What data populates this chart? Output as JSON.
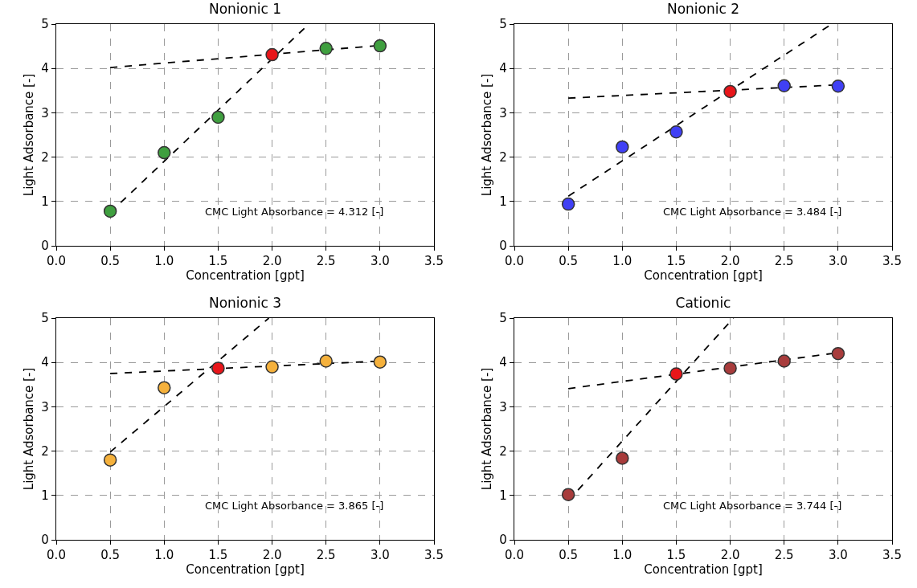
{
  "chart_data": [
    {
      "type": "scatter",
      "title": "Nonionic 1",
      "xlabel": "Concentration [gpt]",
      "ylabel": "Light Adsorbance [-]",
      "annotations": [
        "CMC Light Absorbance = 4.312 [-]"
      ],
      "xlim": [
        0,
        3.5
      ],
      "xticks": [
        {
          "value": 0,
          "label": "0.0"
        },
        {
          "value": 0.5,
          "label": "0.5"
        },
        {
          "value": 1,
          "label": "1.0"
        },
        {
          "value": 1.5,
          "label": "1.5"
        },
        {
          "value": 2,
          "label": "2.0"
        },
        {
          "value": 2.5,
          "label": "2.5"
        },
        {
          "value": 3,
          "label": "3.0"
        },
        {
          "value": 3.5,
          "label": "3.5"
        }
      ],
      "ylim": [
        0,
        5
      ],
      "yticks": [
        0,
        1,
        2,
        3,
        4,
        5
      ],
      "grid": true,
      "marker": "circle",
      "series": [
        {
          "type": "scatter",
          "color": "#3f9f3f",
          "x": [
            0.5,
            1,
            1.5,
            2,
            2.5,
            3
          ],
          "values": [
            0.78,
            2.1,
            2.9,
            null,
            4.45,
            4.51
          ]
        },
        {
          "type": "scatter",
          "color": "#e8161a",
          "x": [
            2
          ],
          "values": [
            4.31
          ]
        },
        {
          "type": "line",
          "marker": "none",
          "color": "#000000",
          "line_style": "dashed",
          "x": [
            0.5,
            2.34
          ],
          "values": [
            0.75,
            5
          ]
        },
        {
          "type": "line",
          "marker": "none",
          "color": "#000000",
          "line_style": "dashed",
          "x": [
            0.5,
            3
          ],
          "values": [
            4.02,
            4.52
          ]
        }
      ]
    },
    {
      "type": "scatter",
      "title": "Nonionic 2",
      "xlabel": "Concentration [gpt]",
      "ylabel": "Light Adsorbance [-]",
      "annotations": [
        "CMC Light Absorbance = 3.484 [-]"
      ],
      "xlim": [
        0,
        3.5
      ],
      "xticks": [
        {
          "value": 0,
          "label": "0.0"
        },
        {
          "value": 0.5,
          "label": "0.5"
        },
        {
          "value": 1,
          "label": "1.0"
        },
        {
          "value": 1.5,
          "label": "1.5"
        },
        {
          "value": 2,
          "label": "2.0"
        },
        {
          "value": 2.5,
          "label": "2.5"
        },
        {
          "value": 3,
          "label": "3.0"
        },
        {
          "value": 3.5,
          "label": "3.5"
        }
      ],
      "ylim": [
        0,
        5
      ],
      "yticks": [
        0,
        1,
        2,
        3,
        4,
        5
      ],
      "grid": true,
      "marker": "circle",
      "series": [
        {
          "type": "scatter",
          "color": "#4040f5",
          "x": [
            0.5,
            1,
            1.5,
            2,
            2.5,
            3
          ],
          "values": [
            0.94,
            2.23,
            2.57,
            null,
            3.61,
            3.6
          ]
        },
        {
          "type": "scatter",
          "color": "#e8161a",
          "x": [
            2
          ],
          "values": [
            3.48
          ]
        },
        {
          "type": "line",
          "marker": "none",
          "color": "#000000",
          "line_style": "dashed",
          "x": [
            0.5,
            2.94
          ],
          "values": [
            1.12,
            5
          ]
        },
        {
          "type": "line",
          "marker": "none",
          "color": "#000000",
          "line_style": "dashed",
          "x": [
            0.5,
            3
          ],
          "values": [
            3.33,
            3.63
          ]
        }
      ]
    },
    {
      "type": "scatter",
      "title": "Nonionic 3",
      "xlabel": "Concentration [gpt]",
      "ylabel": "Light Adsorbance [-]",
      "annotations": [
        "CMC Light Absorbance = 3.865 [-]"
      ],
      "xlim": [
        0,
        3.5
      ],
      "xticks": [
        {
          "value": 0,
          "label": "0.0"
        },
        {
          "value": 0.5,
          "label": "0.5"
        },
        {
          "value": 1,
          "label": "1.0"
        },
        {
          "value": 1.5,
          "label": "1.5"
        },
        {
          "value": 2,
          "label": "2.0"
        },
        {
          "value": 2.5,
          "label": "2.5"
        },
        {
          "value": 3,
          "label": "3.0"
        },
        {
          "value": 3.5,
          "label": "3.5"
        }
      ],
      "ylim": [
        0,
        5
      ],
      "yticks": [
        0,
        1,
        2,
        3,
        4,
        5
      ],
      "grid": true,
      "marker": "circle",
      "series": [
        {
          "type": "scatter",
          "color": "#f5b13c",
          "x": [
            0.5,
            1,
            1.5,
            2,
            2.5,
            3
          ],
          "values": [
            1.8,
            3.43,
            null,
            3.9,
            4.03,
            4.01
          ]
        },
        {
          "type": "scatter",
          "color": "#e8161a",
          "x": [
            1.5
          ],
          "values": [
            3.87
          ]
        },
        {
          "type": "line",
          "marker": "none",
          "color": "#000000",
          "line_style": "dashed",
          "x": [
            0.5,
            1.97
          ],
          "values": [
            1.98,
            5
          ]
        },
        {
          "type": "line",
          "marker": "none",
          "color": "#000000",
          "line_style": "dashed",
          "x": [
            0.5,
            3
          ],
          "values": [
            3.75,
            4.03
          ]
        }
      ]
    },
    {
      "type": "scatter",
      "title": "Cationic",
      "xlabel": "Concentration [gpt]",
      "ylabel": "Light Adsorbance [-]",
      "annotations": [
        "CMC Light Absorbance = 3.744 [-]"
      ],
      "xlim": [
        0,
        3.5
      ],
      "xticks": [
        {
          "value": 0,
          "label": "0.0"
        },
        {
          "value": 0.5,
          "label": "0.5"
        },
        {
          "value": 1,
          "label": "1.0"
        },
        {
          "value": 1.5,
          "label": "1.5"
        },
        {
          "value": 2,
          "label": "2.0"
        },
        {
          "value": 2.5,
          "label": "2.5"
        },
        {
          "value": 3,
          "label": "3.0"
        },
        {
          "value": 3.5,
          "label": "3.5"
        }
      ],
      "ylim": [
        0,
        5
      ],
      "yticks": [
        0,
        1,
        2,
        3,
        4,
        5
      ],
      "grid": true,
      "marker": "circle",
      "series": [
        {
          "type": "scatter",
          "color": "#a83c3c",
          "x": [
            0.5,
            1,
            1.5,
            2,
            2.5,
            3
          ],
          "values": [
            1.02,
            1.84,
            null,
            3.87,
            4.03,
            4.2
          ]
        },
        {
          "type": "scatter",
          "color": "#e8161a",
          "x": [
            1.5
          ],
          "values": [
            3.74
          ]
        },
        {
          "type": "line",
          "marker": "none",
          "color": "#000000",
          "line_style": "dashed",
          "x": [
            0.5,
            2.03
          ],
          "values": [
            0.88,
            5
          ]
        },
        {
          "type": "line",
          "marker": "none",
          "color": "#000000",
          "line_style": "dashed",
          "x": [
            0.5,
            3
          ],
          "values": [
            3.41,
            4.22
          ]
        }
      ]
    }
  ]
}
